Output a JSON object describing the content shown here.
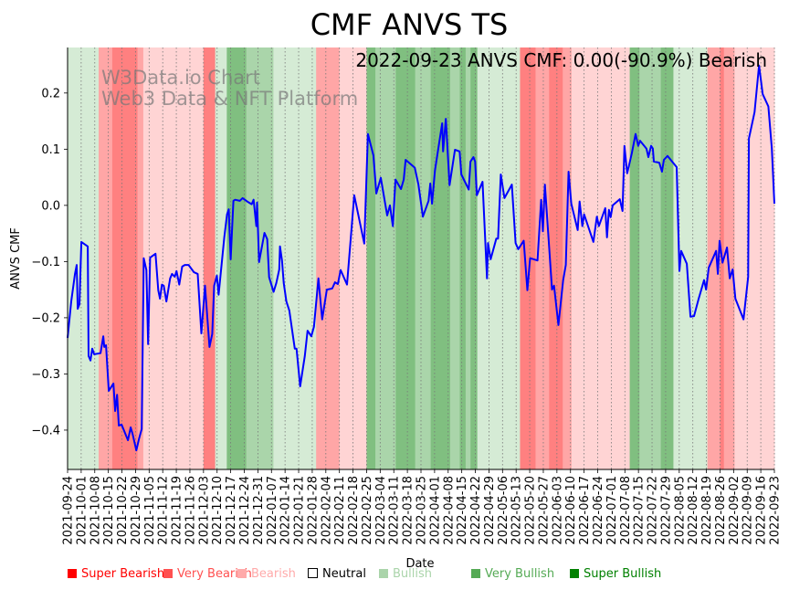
{
  "chart_data": {
    "type": "line",
    "title": "CMF ANVS TS",
    "xlabel": "Date",
    "ylabel": "ANVS CMF",
    "annotation": "2022-09-23 ANVS CMF: 0.00(-90.9%) Bearish",
    "watermark": [
      "W3Data.io Chart",
      "Web3 Data & NFT Platform"
    ],
    "start_date": "2021-09-24",
    "xlim_days": [
      0,
      364
    ],
    "ylim": [
      -0.47,
      0.281
    ],
    "yticks": [
      -0.4,
      -0.3,
      -0.2,
      -0.1,
      0.0,
      0.1,
      0.2
    ],
    "ytick_labels": [
      "−0.4",
      "−0.3",
      "−0.2",
      "−0.1",
      "0.0",
      "0.1",
      "0.2"
    ],
    "xtick_labels": [
      "2021-09-24",
      "2021-10-01",
      "2021-10-08",
      "2021-10-15",
      "2021-10-22",
      "2021-10-29",
      "2021-11-05",
      "2021-11-12",
      "2021-11-19",
      "2021-11-26",
      "2021-12-03",
      "2021-12-10",
      "2021-12-17",
      "2021-12-24",
      "2021-12-31",
      "2022-01-07",
      "2022-01-14",
      "2022-01-21",
      "2022-01-28",
      "2022-02-04",
      "2022-02-11",
      "2022-02-18",
      "2022-02-25",
      "2022-03-04",
      "2022-03-11",
      "2022-03-18",
      "2022-03-25",
      "2022-04-01",
      "2022-04-08",
      "2022-04-15",
      "2022-04-22",
      "2022-04-29",
      "2022-05-06",
      "2022-05-13",
      "2022-05-20",
      "2022-05-27",
      "2022-06-03",
      "2022-06-10",
      "2022-06-17",
      "2022-06-24",
      "2022-07-01",
      "2022-07-08",
      "2022-07-15",
      "2022-07-22",
      "2022-07-29",
      "2022-08-05",
      "2022-08-12",
      "2022-08-19",
      "2022-08-26",
      "2022-09-02",
      "2022-09-09",
      "2022-09-16",
      "2022-09-23"
    ],
    "xtick_step_days": 7,
    "grid": "vertical-dotted",
    "series": [
      {
        "name": "ANVS CMF",
        "color": "#0000ff",
        "points_day_value": [
          [
            0,
            -0.236
          ],
          [
            1.9,
            -0.171
          ],
          [
            3.8,
            -0.122
          ],
          [
            4.7,
            -0.106
          ],
          [
            5.2,
            -0.184
          ],
          [
            6.1,
            -0.176
          ],
          [
            7.1,
            -0.065
          ],
          [
            10.4,
            -0.073
          ],
          [
            10.8,
            -0.268
          ],
          [
            11.8,
            -0.276
          ],
          [
            12.7,
            -0.255
          ],
          [
            13.7,
            -0.265
          ],
          [
            17.0,
            -0.263
          ],
          [
            18.4,
            -0.233
          ],
          [
            18.9,
            -0.252
          ],
          [
            19.8,
            -0.249
          ],
          [
            21.2,
            -0.33
          ],
          [
            23.6,
            -0.317
          ],
          [
            24.5,
            -0.366
          ],
          [
            25.5,
            -0.337
          ],
          [
            26.4,
            -0.392
          ],
          [
            27.8,
            -0.39
          ],
          [
            31.1,
            -0.418
          ],
          [
            32.5,
            -0.395
          ],
          [
            33.5,
            -0.407
          ],
          [
            35.4,
            -0.436
          ],
          [
            36.8,
            -0.415
          ],
          [
            38.2,
            -0.398
          ],
          [
            39.2,
            -0.094
          ],
          [
            40.6,
            -0.115
          ],
          [
            41.5,
            -0.247
          ],
          [
            42.5,
            -0.093
          ],
          [
            45.3,
            -0.086
          ],
          [
            46.7,
            -0.151
          ],
          [
            47.6,
            -0.166
          ],
          [
            48.6,
            -0.141
          ],
          [
            49.5,
            -0.143
          ],
          [
            50.9,
            -0.171
          ],
          [
            52.8,
            -0.13
          ],
          [
            53.8,
            -0.122
          ],
          [
            55.2,
            -0.127
          ],
          [
            56.1,
            -0.117
          ],
          [
            57.5,
            -0.141
          ],
          [
            59.0,
            -0.109
          ],
          [
            60.4,
            -0.106
          ],
          [
            62.3,
            -0.106
          ],
          [
            65.1,
            -0.119
          ],
          [
            67.0,
            -0.122
          ],
          [
            68.9,
            -0.228
          ],
          [
            70.8,
            -0.143
          ],
          [
            73.1,
            -0.252
          ],
          [
            74.5,
            -0.229
          ],
          [
            75.5,
            -0.143
          ],
          [
            76.9,
            -0.125
          ],
          [
            77.8,
            -0.159
          ],
          [
            80.7,
            -0.057
          ],
          [
            82.1,
            -0.016
          ],
          [
            83.0,
            -0.007
          ],
          [
            84.0,
            -0.096
          ],
          [
            85.4,
            0.008
          ],
          [
            86.3,
            0.01
          ],
          [
            88.7,
            0.008
          ],
          [
            90.1,
            0.013
          ],
          [
            92.5,
            0.007
          ],
          [
            94.8,
            0.002
          ],
          [
            95.8,
            0.01
          ],
          [
            97.2,
            -0.037
          ],
          [
            97.6,
            0.005
          ],
          [
            98.6,
            -0.101
          ],
          [
            101.4,
            -0.049
          ],
          [
            102.8,
            -0.06
          ],
          [
            103.8,
            -0.128
          ],
          [
            106.1,
            -0.154
          ],
          [
            107.5,
            -0.138
          ],
          [
            109.0,
            -0.114
          ],
          [
            109.4,
            -0.073
          ],
          [
            110.4,
            -0.098
          ],
          [
            111.3,
            -0.138
          ],
          [
            112.7,
            -0.171
          ],
          [
            114.2,
            -0.187
          ],
          [
            117.0,
            -0.255
          ],
          [
            117.9,
            -0.255
          ],
          [
            119.8,
            -0.322
          ],
          [
            122.2,
            -0.268
          ],
          [
            123.6,
            -0.223
          ],
          [
            125.5,
            -0.233
          ],
          [
            126.9,
            -0.216
          ],
          [
            129.2,
            -0.13
          ],
          [
            131.1,
            -0.203
          ],
          [
            133.5,
            -0.15
          ],
          [
            136.3,
            -0.148
          ],
          [
            137.7,
            -0.137
          ],
          [
            139.2,
            -0.14
          ],
          [
            140.6,
            -0.115
          ],
          [
            143.9,
            -0.141
          ],
          [
            147.6,
            0.018
          ],
          [
            152.8,
            -0.068
          ],
          [
            154.7,
            0.127
          ],
          [
            157.5,
            0.089
          ],
          [
            159.0,
            0.021
          ],
          [
            161.3,
            0.049
          ],
          [
            164.6,
            -0.018
          ],
          [
            166.0,
            0.0
          ],
          [
            167.5,
            -0.037
          ],
          [
            168.9,
            0.046
          ],
          [
            171.7,
            0.029
          ],
          [
            173.1,
            0.046
          ],
          [
            174.1,
            0.081
          ],
          [
            178.8,
            0.067
          ],
          [
            180.7,
            0.037
          ],
          [
            183.0,
            -0.02
          ],
          [
            185.9,
            0.008
          ],
          [
            186.8,
            0.039
          ],
          [
            187.7,
            0.003
          ],
          [
            189.2,
            0.062
          ],
          [
            192.9,
            0.146
          ],
          [
            193.4,
            0.096
          ],
          [
            194.8,
            0.154
          ],
          [
            196.7,
            0.036
          ],
          [
            199.5,
            0.099
          ],
          [
            201.9,
            0.096
          ],
          [
            202.8,
            0.055
          ],
          [
            206.6,
            0.028
          ],
          [
            207.5,
            0.078
          ],
          [
            209.0,
            0.086
          ],
          [
            209.9,
            0.078
          ],
          [
            210.8,
            0.018
          ],
          [
            213.7,
            0.042
          ],
          [
            216.0,
            -0.13
          ],
          [
            216.5,
            -0.067
          ],
          [
            217.9,
            -0.096
          ],
          [
            220.8,
            -0.059
          ],
          [
            221.7,
            -0.059
          ],
          [
            223.1,
            0.055
          ],
          [
            225.0,
            0.013
          ],
          [
            228.8,
            0.037
          ],
          [
            230.7,
            -0.067
          ],
          [
            232.1,
            -0.078
          ],
          [
            234.9,
            -0.063
          ],
          [
            236.8,
            -0.151
          ],
          [
            238.2,
            -0.094
          ],
          [
            242.0,
            -0.098
          ],
          [
            243.9,
            0.01
          ],
          [
            244.8,
            -0.046
          ],
          [
            245.8,
            0.037
          ],
          [
            249.5,
            -0.15
          ],
          [
            250.5,
            -0.143
          ],
          [
            252.8,
            -0.213
          ],
          [
            255.2,
            -0.133
          ],
          [
            256.6,
            -0.106
          ],
          [
            258.0,
            0.06
          ],
          [
            259.4,
            0.003
          ],
          [
            262.7,
            -0.044
          ],
          [
            263.7,
            0.007
          ],
          [
            265.1,
            -0.037
          ],
          [
            266.0,
            -0.016
          ],
          [
            270.8,
            -0.065
          ],
          [
            272.6,
            -0.02
          ],
          [
            273.6,
            -0.037
          ],
          [
            276.9,
            -0.005
          ],
          [
            277.8,
            -0.057
          ],
          [
            278.8,
            -0.008
          ],
          [
            279.7,
            -0.021
          ],
          [
            280.7,
            0.0
          ],
          [
            284.4,
            0.011
          ],
          [
            285.8,
            -0.01
          ],
          [
            286.8,
            0.106
          ],
          [
            288.2,
            0.057
          ],
          [
            290.6,
            0.093
          ],
          [
            292.5,
            0.127
          ],
          [
            293.9,
            0.106
          ],
          [
            294.8,
            0.115
          ],
          [
            298.1,
            0.101
          ],
          [
            299.1,
            0.086
          ],
          [
            300.5,
            0.106
          ],
          [
            301.4,
            0.101
          ],
          [
            301.9,
            0.078
          ],
          [
            304.7,
            0.076
          ],
          [
            306.1,
            0.06
          ],
          [
            307.1,
            0.081
          ],
          [
            309.0,
            0.088
          ],
          [
            311.8,
            0.076
          ],
          [
            313.7,
            0.068
          ],
          [
            315.1,
            -0.117
          ],
          [
            316.0,
            -0.081
          ],
          [
            318.9,
            -0.104
          ],
          [
            320.8,
            -0.198
          ],
          [
            322.6,
            -0.197
          ],
          [
            325.0,
            -0.166
          ],
          [
            327.8,
            -0.133
          ],
          [
            328.8,
            -0.15
          ],
          [
            330.2,
            -0.111
          ],
          [
            334.0,
            -0.081
          ],
          [
            334.9,
            -0.122
          ],
          [
            335.8,
            -0.063
          ],
          [
            337.3,
            -0.102
          ],
          [
            339.6,
            -0.075
          ],
          [
            341.0,
            -0.13
          ],
          [
            342.5,
            -0.114
          ],
          [
            343.9,
            -0.166
          ],
          [
            348.1,
            -0.203
          ],
          [
            350.5,
            -0.127
          ],
          [
            350.9,
            0.119
          ],
          [
            353.8,
            0.166
          ],
          [
            356.1,
            0.249
          ],
          [
            358.0,
            0.198
          ],
          [
            360.9,
            0.176
          ],
          [
            362.7,
            0.101
          ],
          [
            364.6,
            0.003
          ]
        ]
      }
    ],
    "regime_bands_days": [
      [
        0,
        16,
        "bullish"
      ],
      [
        16,
        23,
        "very_bearish"
      ],
      [
        23,
        36,
        "super_bearish"
      ],
      [
        36,
        39,
        "very_bearish"
      ],
      [
        39,
        70,
        "bearish"
      ],
      [
        70,
        76,
        "super_bearish"
      ],
      [
        76,
        82,
        "bullish"
      ],
      [
        82,
        92,
        "super_bullish"
      ],
      [
        92,
        106,
        "very_bullish"
      ],
      [
        106,
        128,
        "bullish"
      ],
      [
        128,
        134,
        "very_bearish"
      ],
      [
        134,
        140,
        "very_bearish"
      ],
      [
        140,
        154,
        "bearish"
      ],
      [
        154,
        158.5,
        "super_bullish"
      ],
      [
        158.5,
        169,
        "very_bullish"
      ],
      [
        169,
        179,
        "super_bullish"
      ],
      [
        179,
        187,
        "very_bullish"
      ],
      [
        187,
        197,
        "super_bullish"
      ],
      [
        197,
        202,
        "very_bullish"
      ],
      [
        202,
        205,
        "super_bullish"
      ],
      [
        205,
        207.5,
        "very_bullish"
      ],
      [
        207.5,
        211,
        "super_bullish"
      ],
      [
        211,
        233,
        "bullish"
      ],
      [
        233,
        241,
        "super_bearish"
      ],
      [
        241,
        248,
        "very_bearish"
      ],
      [
        248,
        255,
        "super_bearish"
      ],
      [
        255,
        259.5,
        "very_bearish"
      ],
      [
        259.5,
        289.5,
        "bearish"
      ],
      [
        289.5,
        294.5,
        "super_bullish"
      ],
      [
        294.5,
        305.5,
        "very_bullish"
      ],
      [
        305.5,
        312,
        "super_bullish"
      ],
      [
        312,
        329.5,
        "bullish"
      ],
      [
        329.5,
        336,
        "very_bearish"
      ],
      [
        336,
        338,
        "super_bearish"
      ],
      [
        338,
        343.5,
        "very_bearish"
      ],
      [
        343.5,
        365,
        "bearish"
      ]
    ],
    "band_colors": {
      "super_bearish": "#ff8080",
      "very_bearish": "#ffa6a6",
      "bearish": "#ffd4d4",
      "neutral": "#ffffff",
      "bullish": "#d5ebd5",
      "very_bullish": "#aad5aa",
      "super_bullish": "#80bf80"
    },
    "legend": {
      "placement": "bottom",
      "items": [
        {
          "label": "Super Bearish",
          "color": "#ff0000"
        },
        {
          "label": "Very Bearish",
          "color": "#ff5050"
        },
        {
          "label": "Bearish",
          "color": "#ffaaaa"
        },
        {
          "label": "Neutral",
          "color": "#000000"
        },
        {
          "label": "Bullish",
          "color": "#aad4aa"
        },
        {
          "label": "Very Bullish",
          "color": "#55aa55"
        },
        {
          "label": "Super Bullish",
          "color": "#008000"
        }
      ]
    }
  }
}
